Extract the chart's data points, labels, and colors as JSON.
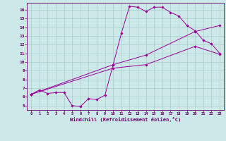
{
  "xlabel": "Windchill (Refroidissement éolien,°C)",
  "bg_color": "#cce8e8",
  "grid_color": "#aacccc",
  "line_color": "#990099",
  "xlim": [
    -0.5,
    23.5
  ],
  "ylim": [
    4.5,
    16.8
  ],
  "xticks": [
    0,
    1,
    2,
    3,
    4,
    5,
    6,
    7,
    8,
    9,
    10,
    11,
    12,
    13,
    14,
    15,
    16,
    17,
    18,
    19,
    20,
    21,
    22,
    23
  ],
  "yticks": [
    5,
    6,
    7,
    8,
    9,
    10,
    11,
    12,
    13,
    14,
    15,
    16
  ],
  "line1_x": [
    0,
    1,
    2,
    3,
    4,
    5,
    6,
    7,
    8,
    9,
    10,
    11,
    12,
    13,
    14,
    15,
    16,
    17,
    18,
    19,
    20,
    21,
    22,
    23
  ],
  "line1_y": [
    6.3,
    6.8,
    6.4,
    6.5,
    6.5,
    5.0,
    4.9,
    5.8,
    5.7,
    6.2,
    9.7,
    13.3,
    16.4,
    16.3,
    15.8,
    16.3,
    16.3,
    15.7,
    15.3,
    14.2,
    13.6,
    12.5,
    12.1,
    11.0
  ],
  "line2_x": [
    0,
    10,
    14,
    20,
    23
  ],
  "line2_y": [
    6.3,
    9.7,
    10.8,
    13.5,
    14.2
  ],
  "line3_x": [
    0,
    10,
    14,
    20,
    23
  ],
  "line3_y": [
    6.3,
    9.3,
    9.7,
    11.8,
    10.9
  ]
}
